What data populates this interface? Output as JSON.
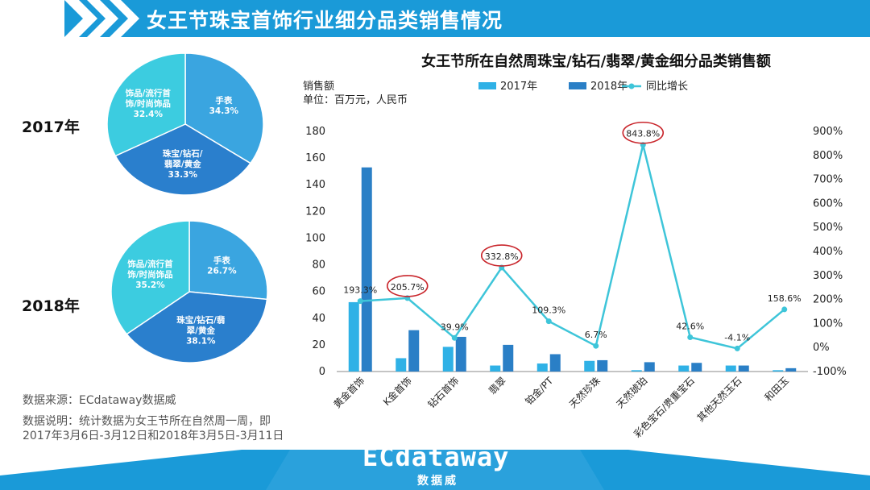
{
  "header": {
    "title": "女王节珠宝首饰行业细分品类销售情况"
  },
  "pies": [
    {
      "year_label": "2017年",
      "slices": [
        {
          "label_lines": [
            "手表"
          ],
          "pct": "34.3%",
          "value": 34.3,
          "color": "#3aa5e0"
        },
        {
          "label_lines": [
            "珠宝/钻石/",
            "翡翠/黄金"
          ],
          "pct": "33.3%",
          "value": 33.3,
          "color": "#2a7fcd"
        },
        {
          "label_lines": [
            "饰品/流行首",
            "饰/时尚饰品"
          ],
          "pct": "32.4%",
          "value": 32.4,
          "color": "#3ccce0"
        }
      ]
    },
    {
      "year_label": "2018年",
      "slices": [
        {
          "label_lines": [
            "手表"
          ],
          "pct": "26.7%",
          "value": 26.7,
          "color": "#3aa5e0"
        },
        {
          "label_lines": [
            "珠宝/钻石/翡",
            "翠/黄金"
          ],
          "pct": "38.1%",
          "value": 38.1,
          "color": "#2a7fcd"
        },
        {
          "label_lines": [
            "饰品/流行首",
            "饰/时尚饰品"
          ],
          "pct": "35.2%",
          "value": 35.2,
          "color": "#3ccce0"
        }
      ]
    }
  ],
  "chart_data": {
    "type": "bar",
    "title": "女王节所在自然周珠宝/钻石/翡翠/黄金细分品类销售额",
    "ylabel_lines": [
      "销售额",
      "单位：百万元，人民币"
    ],
    "categories": [
      "黄金首饰",
      "K金首饰",
      "钻石首饰",
      "翡翠",
      "铂金/PT",
      "天然珍珠",
      "天然琥珀",
      "彩色宝石/贵重宝石",
      "其他天然玉石",
      "和田玉"
    ],
    "series": [
      {
        "name": "2017年",
        "type": "bar",
        "axis": "left",
        "color": "#2fb1e6",
        "values": [
          52,
          10,
          18.5,
          4.5,
          6,
          8,
          1,
          4.5,
          4.5,
          1
        ]
      },
      {
        "name": "2018年",
        "type": "bar",
        "axis": "left",
        "color": "#2a7fc6",
        "values": [
          153,
          31,
          26,
          20,
          13,
          8.5,
          7,
          6.5,
          4.5,
          2.5
        ]
      },
      {
        "name": "同比增长",
        "type": "line",
        "axis": "right",
        "color": "#3ec5d9",
        "values": [
          193.3,
          205.7,
          39.9,
          332.8,
          109.3,
          6.7,
          843.8,
          42.6,
          -4.1,
          158.6
        ]
      }
    ],
    "data_labels": [
      "193.3%",
      "205.7%",
      "39.9%",
      "332.8%",
      "109.3%",
      "6.7%",
      "843.8%",
      "42.6%",
      "-4.1%",
      "158.6%"
    ],
    "highlighted": [
      1,
      3,
      6
    ],
    "highlight_color": "#c9262c",
    "ylim": [
      0,
      180
    ],
    "yticks": [
      "0",
      "20",
      "40",
      "60",
      "80",
      "100",
      "120",
      "140",
      "160",
      "180"
    ],
    "y2lim": [
      -100,
      900
    ],
    "y2ticks": [
      "-100%",
      "0%",
      "100%",
      "200%",
      "300%",
      "400%",
      "500%",
      "600%",
      "700%",
      "800%",
      "900%"
    ],
    "legend_placement": "top",
    "grid": false
  },
  "notes": {
    "source": "数据来源：ECdataway数据威",
    "desc_line1": "数据说明：统计数据为女王节所在自然周一周，即",
    "desc_line2": "2017年3月6日-3月12日和2018年3月5日-3月11日"
  },
  "logo": {
    "main": "ECdataway",
    "sub": "数据威",
    "reg": "®"
  },
  "colors": {
    "brand": "#1a9ad8",
    "footer": "#2aa1dc"
  }
}
